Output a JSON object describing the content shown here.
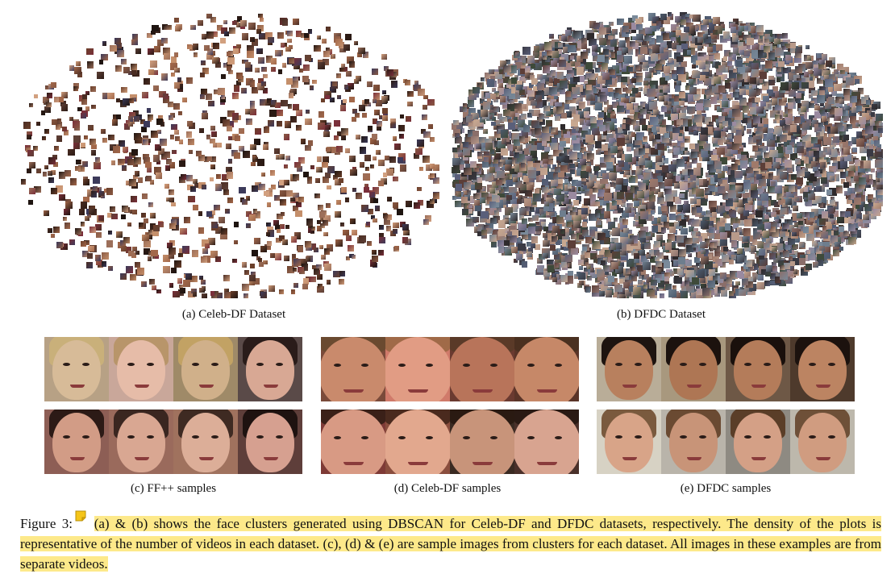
{
  "figure": {
    "subcaptions": {
      "a": "(a) Celeb-DF Dataset",
      "b": "(b) DFDC Dataset",
      "c": "(c) FF++ samples",
      "d": "(d) Celeb-DF samples",
      "e": "(e) DFDC samples"
    },
    "caption": {
      "label": "Figure 3:",
      "text_line": "(a) & (b) shows the face clusters generated using DBSCAN for Celeb-DF and DFDC datasets, respectively. The density of the plots is representative of the number of videos in each dataset. (c), (d) & (e) are sample images from clusters for each dataset. All images in these examples are from separate videos."
    }
  },
  "colors": {
    "highlight": "#fde98a",
    "note_icon": "#f5c518"
  },
  "icons": {
    "annotation": "sticky-note-icon"
  }
}
